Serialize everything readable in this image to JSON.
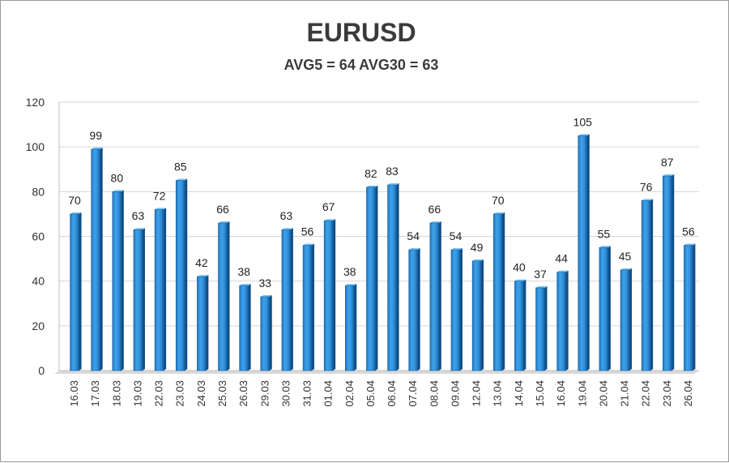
{
  "chart_data": {
    "type": "bar",
    "title": "EURUSD",
    "subtitle": "AVG5 = 64 AVG30 = 63",
    "xlabel": "",
    "ylabel": "",
    "ylim": [
      0,
      120
    ],
    "yticks": [
      0,
      20,
      40,
      60,
      80,
      100,
      120
    ],
    "grid": true,
    "legend": "none",
    "bar_color": "#2f8fd8",
    "categories": [
      "16.03",
      "17.03",
      "18.03",
      "19.03",
      "22.03",
      "23.03",
      "24.03",
      "25.03",
      "26.03",
      "29.03",
      "30.03",
      "31.03",
      "01.04",
      "02.04",
      "05.04",
      "06.04",
      "07.04",
      "08.04",
      "09.04",
      "12.04",
      "13.04",
      "14.04",
      "15.04",
      "16.04",
      "19.04",
      "20.04",
      "21.04",
      "22.04",
      "23.04",
      "26.04"
    ],
    "values": [
      70,
      99,
      80,
      63,
      72,
      85,
      42,
      66,
      38,
      33,
      63,
      56,
      67,
      38,
      82,
      83,
      54,
      66,
      54,
      49,
      70,
      40,
      37,
      44,
      105,
      55,
      45,
      76,
      87,
      56
    ]
  }
}
